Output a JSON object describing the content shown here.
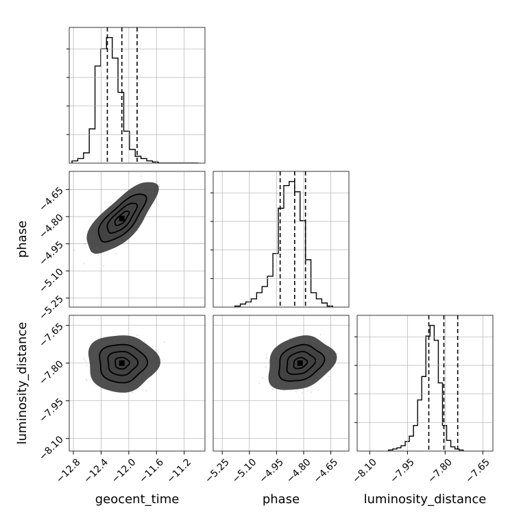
{
  "chart_data": {
    "type": "corner",
    "params": [
      {
        "name": "geocent_time",
        "label": "geocent_time",
        "range": [
          -12.86,
          -10.9
        ],
        "ticks": [
          -12.8,
          -12.4,
          -12.0,
          -11.6,
          -11.2
        ],
        "tick_labels": [
          "−12.8",
          "−12.4",
          "−12.0",
          "−11.6",
          "−11.2"
        ],
        "quantiles": [
          -12.31,
          -12.1,
          -11.88
        ],
        "hist_bin_width": 0.083,
        "hist_bin_start": -12.82,
        "hist": [
          2,
          4,
          9,
          30,
          85,
          100,
          110,
          92,
          62,
          28,
          12,
          6,
          4,
          2,
          1,
          0,
          0,
          0,
          0,
          0,
          0,
          0
        ]
      },
      {
        "name": "phase",
        "label": "phase",
        "range": [
          -5.3,
          -4.55
        ],
        "ticks": [
          -5.25,
          -5.1,
          -4.95,
          -4.8,
          -4.65
        ],
        "tick_labels": [
          "−5.25",
          "−5.10",
          "−4.95",
          "−4.80",
          "−4.65"
        ],
        "quantiles": [
          -4.93,
          -4.85,
          -4.79
        ],
        "hist_bin_width": 0.03,
        "hist_bin_start": -5.18,
        "hist": [
          1,
          3,
          5,
          8,
          14,
          20,
          30,
          52,
          96,
          118,
          122,
          112,
          84,
          46,
          14,
          8,
          4,
          1
        ]
      },
      {
        "name": "luminosity_distance",
        "label": "luminosity_distance",
        "range": [
          -8.15,
          -7.61
        ],
        "ticks": [
          -8.1,
          -7.95,
          -7.8,
          -7.65
        ],
        "tick_labels": [
          "−8.10",
          "−7.95",
          "−7.80",
          "−7.65"
        ],
        "quantiles": [
          -7.865,
          -7.805,
          -7.75
        ],
        "hist_bin_width": 0.0165,
        "hist_bin_start": -8.025,
        "hist": [
          1,
          2,
          3,
          5,
          9,
          14,
          24,
          48,
          70,
          108,
          118,
          104,
          64,
          24,
          10,
          4,
          2,
          1
        ]
      }
    ],
    "contours": [
      {
        "x_param": "geocent_time",
        "y_param": "phase",
        "center": [
          -12.1,
          -4.81
        ],
        "sigma": [
          0.17,
          0.066
        ],
        "rho": 0.74,
        "levels": [
          [
            0.6,
            1.1
          ],
          [
            1.25,
            0.78
          ],
          [
            2.0,
            0.5
          ],
          [
            3.0,
            0.22
          ]
        ]
      },
      {
        "x_param": "geocent_time",
        "y_param": "luminosity_distance",
        "center": [
          -12.1,
          -7.8
        ],
        "sigma": [
          0.17,
          0.038
        ],
        "rho": 0.0,
        "levels": [
          [
            0.6,
            1.1
          ],
          [
            1.25,
            0.78
          ],
          [
            2.0,
            0.5
          ],
          [
            3.0,
            0.22
          ]
        ]
      },
      {
        "x_param": "phase",
        "y_param": "luminosity_distance",
        "center": [
          -4.82,
          -7.8
        ],
        "sigma": [
          0.062,
          0.036
        ],
        "rho": 0.22,
        "levels": [
          [
            0.6,
            1.1
          ],
          [
            1.25,
            0.78
          ],
          [
            2.0,
            0.5
          ],
          [
            3.0,
            0.22
          ]
        ]
      }
    ],
    "grid": true,
    "colors": {
      "line": "#000000",
      "grid": "#b0b0b0",
      "scatter": "#9a9a9a",
      "fill_dark": "#333333",
      "fill_light": "#e6e6e6"
    }
  }
}
